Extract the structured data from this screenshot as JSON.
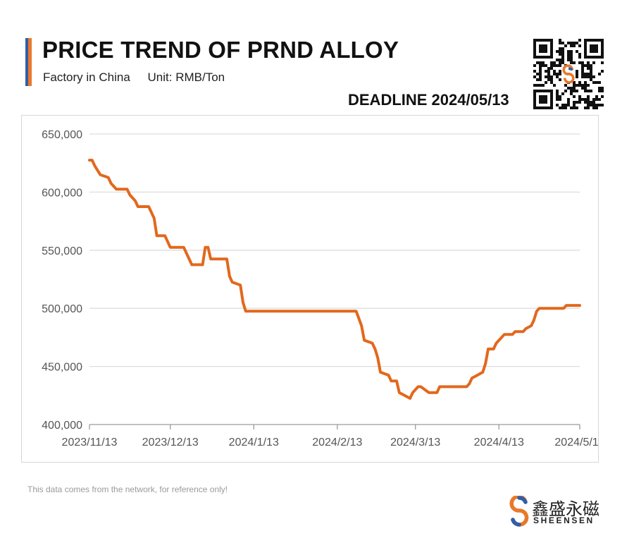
{
  "header": {
    "title": "PRICE TREND OF PRND ALLOY",
    "factory": "Factory in China",
    "unit": "Unit: RMB/Ton",
    "deadline": "DEADLINE 2024/05/13"
  },
  "footer": {
    "note": "This data comes from the network, for reference only!",
    "brand_cn": "鑫盛永磁",
    "brand_en": "SHEENSEN"
  },
  "colors": {
    "line": "#e2681d",
    "grid": "#dedede",
    "axis_text": "#555555",
    "accent_blue": "#2f5fa8",
    "accent_orange": "#e8792b"
  },
  "chart_data": {
    "type": "line",
    "title": "PRICE TREND OF PRND ALLOY",
    "xlabel": "",
    "ylabel": "RMB/Ton",
    "ylim": [
      400000,
      650000
    ],
    "yticks": [
      400000,
      450000,
      500000,
      550000,
      600000,
      650000
    ],
    "ytick_labels": [
      "400,000",
      "450,000",
      "500,000",
      "550,000",
      "600,000",
      "650,000"
    ],
    "x_start": "2023-11-13",
    "x_end": "2024-05-13",
    "xtick_dates": [
      "2023-11-13",
      "2023-12-13",
      "2024-01-13",
      "2024-02-13",
      "2024-03-13",
      "2024-04-13",
      "2024-05-13"
    ],
    "xtick_labels": [
      "2023/11/13",
      "2023/12/13",
      "2024/1/13",
      "2024/2/13",
      "2024/3/13",
      "2024/4/13",
      "2024/5/13"
    ],
    "grid": true,
    "series": [
      {
        "name": "PrNd Alloy",
        "points": [
          [
            "2023-11-13",
            627500
          ],
          [
            "2023-11-14",
            627500
          ],
          [
            "2023-11-15",
            622500
          ],
          [
            "2023-11-17",
            615000
          ],
          [
            "2023-11-20",
            612500
          ],
          [
            "2023-11-21",
            607500
          ],
          [
            "2023-11-23",
            602500
          ],
          [
            "2023-11-27",
            602500
          ],
          [
            "2023-11-28",
            597500
          ],
          [
            "2023-11-29",
            595000
          ],
          [
            "2023-11-30",
            592500
          ],
          [
            "2023-12-01",
            587500
          ],
          [
            "2023-12-05",
            587500
          ],
          [
            "2023-12-07",
            577500
          ],
          [
            "2023-12-08",
            562500
          ],
          [
            "2023-12-11",
            562500
          ],
          [
            "2023-12-13",
            552500
          ],
          [
            "2023-12-18",
            552500
          ],
          [
            "2023-12-21",
            537500
          ],
          [
            "2023-12-25",
            537500
          ],
          [
            "2023-12-26",
            552500
          ],
          [
            "2023-12-27",
            552500
          ],
          [
            "2023-12-28",
            542500
          ],
          [
            "2024-01-03",
            542500
          ],
          [
            "2024-01-04",
            527500
          ],
          [
            "2024-01-05",
            522500
          ],
          [
            "2024-01-08",
            520000
          ],
          [
            "2024-01-09",
            505000
          ],
          [
            "2024-01-10",
            497500
          ],
          [
            "2024-02-20",
            497500
          ],
          [
            "2024-02-22",
            485000
          ],
          [
            "2024-02-23",
            472500
          ],
          [
            "2024-02-26",
            470000
          ],
          [
            "2024-02-27",
            465000
          ],
          [
            "2024-02-28",
            457500
          ],
          [
            "2024-02-29",
            445000
          ],
          [
            "2024-03-03",
            442500
          ],
          [
            "2024-03-04",
            437500
          ],
          [
            "2024-03-06",
            437500
          ],
          [
            "2024-03-07",
            427500
          ],
          [
            "2024-03-09",
            425000
          ],
          [
            "2024-03-11",
            422500
          ],
          [
            "2024-03-12",
            427500
          ],
          [
            "2024-03-14",
            432500
          ],
          [
            "2024-03-15",
            432500
          ],
          [
            "2024-03-18",
            427500
          ],
          [
            "2024-03-21",
            427500
          ],
          [
            "2024-03-22",
            432500
          ],
          [
            "2024-04-01",
            432500
          ],
          [
            "2024-04-02",
            435000
          ],
          [
            "2024-04-03",
            440000
          ],
          [
            "2024-04-05",
            442500
          ],
          [
            "2024-04-07",
            445000
          ],
          [
            "2024-04-08",
            452500
          ],
          [
            "2024-04-09",
            465000
          ],
          [
            "2024-04-11",
            465000
          ],
          [
            "2024-04-12",
            470000
          ],
          [
            "2024-04-15",
            477500
          ],
          [
            "2024-04-18",
            477500
          ],
          [
            "2024-04-19",
            480000
          ],
          [
            "2024-04-22",
            480000
          ],
          [
            "2024-04-23",
            482500
          ],
          [
            "2024-04-25",
            485000
          ],
          [
            "2024-04-26",
            490000
          ],
          [
            "2024-04-27",
            497500
          ],
          [
            "2024-04-28",
            500000
          ],
          [
            "2024-05-07",
            500000
          ],
          [
            "2024-05-08",
            502500
          ],
          [
            "2024-05-13",
            502500
          ]
        ]
      }
    ]
  }
}
